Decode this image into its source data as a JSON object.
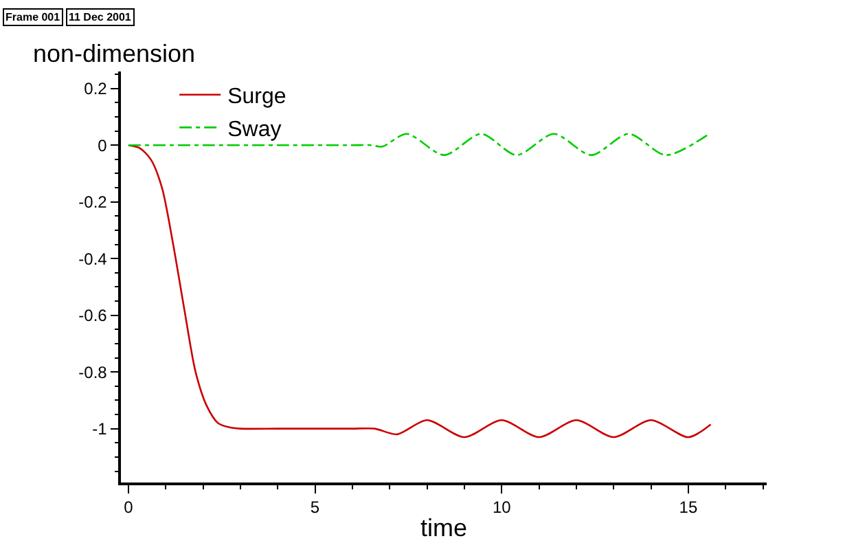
{
  "chart_data": {
    "type": "line",
    "xlabel": "time",
    "ylabel": "non-dimension",
    "annotations": [
      "Frame 001",
      "11 Dec 2001"
    ],
    "xlim": [
      -0.2,
      17.1
    ],
    "xticks": [
      0,
      5,
      10,
      15
    ],
    "ylim": [
      -1.19,
      0.26
    ],
    "yticks": [
      {
        "value": 0.2,
        "label": "0.2"
      },
      0,
      {
        "value": -0.2,
        "label": "-0.2"
      },
      {
        "value": -0.4,
        "label": "-0.4"
      },
      {
        "value": -0.6,
        "label": "-0.6"
      },
      {
        "value": -0.8,
        "label": "-0.8"
      },
      -1
    ],
    "legend": "top left",
    "marker": "none",
    "series": [
      {
        "name": "Surge",
        "color": "#cc0000",
        "line_style": "solid",
        "x": [
          0,
          0.3,
          0.6,
          0.9,
          1.2,
          1.5,
          1.8,
          2.1,
          2.4,
          2.7,
          3.0,
          4.0,
          5.0,
          6.0,
          6.6,
          7.2,
          8.0,
          9.0,
          10.0,
          11.0,
          12.0,
          13.0,
          14.0,
          15.0,
          15.6
        ],
        "values": [
          0,
          -0.01,
          -0.05,
          -0.15,
          -0.35,
          -0.58,
          -0.8,
          -0.92,
          -0.98,
          -0.995,
          -1,
          -1,
          -1,
          -1,
          -1,
          -1.02,
          -0.97,
          -1.03,
          -0.97,
          -1.03,
          -0.97,
          -1.03,
          -0.97,
          -1.03,
          -0.985
        ]
      },
      {
        "name": "Sway",
        "color": "#00cc00",
        "line_style": "dashdot",
        "x": [
          0,
          2.0,
          4.0,
          6.0,
          6.5,
          6.8,
          7.46,
          8.46,
          9.45,
          10.4,
          11.4,
          12.4,
          13.4,
          14.4,
          15.5
        ],
        "values": [
          0,
          0,
          0,
          0,
          0,
          -0.005,
          0.04,
          -0.035,
          0.04,
          -0.035,
          0.04,
          -0.035,
          0.04,
          -0.035,
          0.035
        ]
      }
    ]
  }
}
